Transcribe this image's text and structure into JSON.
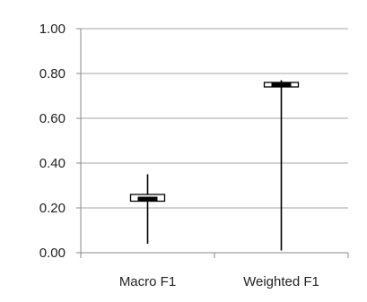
{
  "chart_data": {
    "type": "box",
    "categories": [
      "Macro F1",
      "Weighted F1"
    ],
    "boxes": [
      {
        "name": "Macro F1",
        "min": 0.04,
        "q1": 0.23,
        "median": 0.24,
        "q3": 0.26,
        "max": 0.35
      },
      {
        "name": "Weighted F1",
        "min": 0.01,
        "q1": 0.74,
        "median": 0.75,
        "q3": 0.76,
        "max": 0.77
      }
    ],
    "yticks": [
      "0.00",
      "0.20",
      "0.40",
      "0.60",
      "0.80",
      "1.00"
    ],
    "ylim": [
      0,
      1
    ],
    "grid": true,
    "legend": "none",
    "colors": {
      "box_fill": "#ffffff",
      "stroke": "#000000",
      "grid": "#a6a6a6",
      "median": "#000000"
    }
  }
}
